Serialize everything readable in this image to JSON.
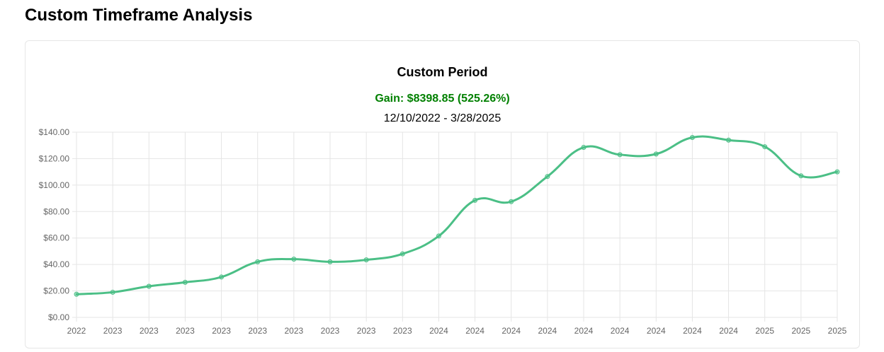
{
  "page": {
    "title": "Custom Timeframe Analysis"
  },
  "card": {
    "title": "Custom Period",
    "gain": "Gain: $8398.85 (525.26%)",
    "gain_color": "#008000",
    "date_range": "12/10/2022 - 3/28/2025"
  },
  "chart_data": {
    "type": "line",
    "title": "Custom Period",
    "xlabel": "",
    "ylabel": "",
    "ylim": [
      0,
      140
    ],
    "y_tick_step": 20,
    "y_tick_format": "$",
    "grid": true,
    "legend": "none",
    "line_color": "#4bbf86",
    "categories": [
      "2022",
      "2023",
      "2023",
      "2023",
      "2023",
      "2023",
      "2023",
      "2023",
      "2023",
      "2023",
      "2024",
      "2024",
      "2024",
      "2024",
      "2024",
      "2024",
      "2024",
      "2024",
      "2024",
      "2025",
      "2025",
      "2025"
    ],
    "series": [
      {
        "values": [
          17.5,
          19.0,
          23.5,
          26.5,
          30.5,
          42.0,
          44.0,
          42.0,
          43.5,
          48.0,
          61.5,
          88.5,
          87.5,
          106.5,
          128.5,
          123.0,
          123.5,
          136.0,
          134.0,
          129.0,
          107.0,
          110.0
        ]
      }
    ]
  }
}
